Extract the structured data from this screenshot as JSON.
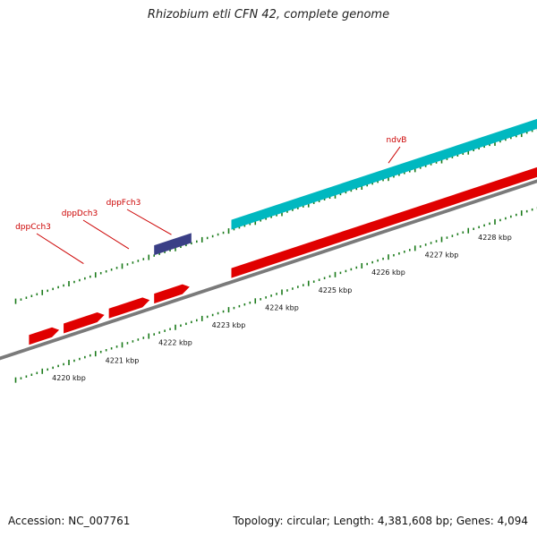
{
  "title": "Rhizobium etli CFN 42, complete genome",
  "footer": {
    "accession": "Accession: NC_007761",
    "summary": "Topology: circular; Length: 4,381,608 bp; Genes: 4,094"
  },
  "colors": {
    "forward_gene": "#e00000",
    "cds_teal": "#00b8c0",
    "cds_blue": "#3a3f86",
    "tick": "#1a7a1a",
    "backbone": "#7a7a7a",
    "label": "#cc0000"
  },
  "ruler": {
    "unit": "kbp",
    "ticks": [
      {
        "kbp": 4220,
        "label": "4220 kbp"
      },
      {
        "kbp": 4221,
        "label": "4221 kbp"
      },
      {
        "kbp": 4222,
        "label": "4222 kbp"
      },
      {
        "kbp": 4223,
        "label": "4223 kbp"
      },
      {
        "kbp": 4224,
        "label": "4224 kbp"
      },
      {
        "kbp": 4225,
        "label": "4225 kbp"
      },
      {
        "kbp": 4226,
        "label": "4226 kbp"
      },
      {
        "kbp": 4227,
        "label": "4227 kbp"
      },
      {
        "kbp": 4228,
        "label": "4228 kbp"
      }
    ]
  },
  "features": [
    {
      "name": "dppCch3",
      "start_kbp": 4219.85,
      "end_kbp": 4220.7,
      "type": "gene"
    },
    {
      "name": "dppDch3",
      "start_kbp": 4220.7,
      "end_kbp": 4221.55,
      "type": "gene"
    },
    {
      "name": "dppFch3",
      "start_kbp": 4221.55,
      "end_kbp": 4222.3,
      "type": "gene"
    },
    {
      "name": "",
      "start_kbp": 4219.2,
      "end_kbp": 4219.85,
      "type": "gene"
    },
    {
      "name": "ndvB",
      "start_kbp": 4223.0,
      "end_kbp": 4229.0,
      "type": "gene"
    }
  ],
  "cds_bars": [
    {
      "start_kbp": 4221.55,
      "end_kbp": 4222.3,
      "color_key": "cds_blue"
    },
    {
      "start_kbp": 4223.0,
      "end_kbp": 4229.0,
      "color_key": "cds_teal"
    }
  ]
}
